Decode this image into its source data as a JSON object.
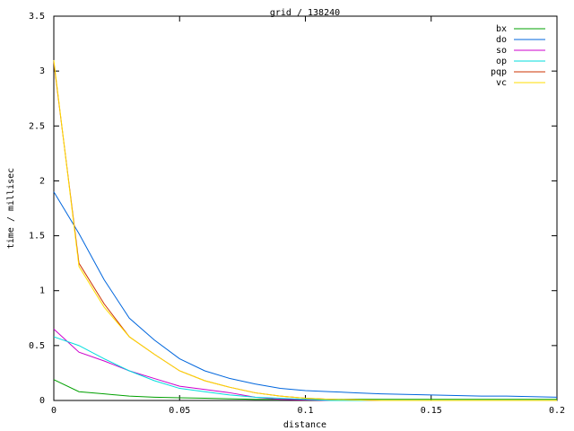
{
  "chart_data": {
    "type": "line",
    "title": "grid / 138240",
    "x_label": "distance",
    "y_label": "time / millisec",
    "x": [
      0,
      0.01,
      0.02,
      0.03,
      0.04,
      0.05,
      0.06,
      0.07,
      0.08,
      0.09,
      0.1,
      0.11,
      0.12,
      0.13,
      0.14,
      0.15,
      0.16,
      0.17,
      0.18,
      0.19,
      0.2
    ],
    "series": [
      {
        "name": "bx",
        "color": "#00a000",
        "values": [
          0.19,
          0.08,
          0.06,
          0.04,
          0.03,
          0.025,
          0.02,
          0.015,
          0.01,
          0.01,
          0.01,
          0.01,
          0.01,
          0.01,
          0.01,
          0.01,
          0.01,
          0.01,
          0.01,
          0.01,
          0.01
        ]
      },
      {
        "name": "do",
        "color": "#0066dd",
        "values": [
          1.9,
          1.52,
          1.1,
          0.75,
          0.55,
          0.38,
          0.27,
          0.2,
          0.15,
          0.11,
          0.09,
          0.08,
          0.07,
          0.06,
          0.055,
          0.05,
          0.045,
          0.04,
          0.04,
          0.035,
          0.03
        ]
      },
      {
        "name": "so",
        "color": "#cc00cc",
        "values": [
          0.65,
          0.44,
          0.36,
          0.27,
          0.2,
          0.13,
          0.1,
          0.07,
          0.03,
          0.01,
          0.005,
          0,
          0,
          0,
          0,
          0,
          0,
          0,
          0,
          0,
          0
        ]
      },
      {
        "name": "op",
        "color": "#00dddd",
        "values": [
          0.58,
          0.5,
          0.38,
          0.27,
          0.18,
          0.11,
          0.08,
          0.05,
          0.03,
          0.02,
          0.01,
          0,
          0,
          0,
          0,
          0,
          0,
          0,
          0,
          0,
          0
        ]
      },
      {
        "name": "pqp",
        "color": "#cc3300",
        "values": [
          3.08,
          1.25,
          0.88,
          0.58,
          0.42,
          0.27,
          0.18,
          0.12,
          0.07,
          0.04,
          0.02,
          0.01,
          0.005,
          0,
          0,
          0,
          0,
          0,
          0,
          0,
          0
        ]
      },
      {
        "name": "vc",
        "color": "#ffdd00",
        "values": [
          3.1,
          1.22,
          0.85,
          0.58,
          0.42,
          0.27,
          0.18,
          0.12,
          0.07,
          0.04,
          0.02,
          0.01,
          0.005,
          0,
          0,
          0,
          0,
          0,
          0,
          0,
          0
        ]
      }
    ],
    "xlim": [
      0,
      0.2
    ],
    "xticks": [
      0,
      0.05,
      0.1,
      0.15,
      0.2
    ],
    "ylim": [
      0,
      3.5
    ],
    "yticks": [
      0,
      0.5,
      1,
      1.5,
      2,
      2.5,
      3,
      3.5
    ],
    "legend": "top-right"
  }
}
